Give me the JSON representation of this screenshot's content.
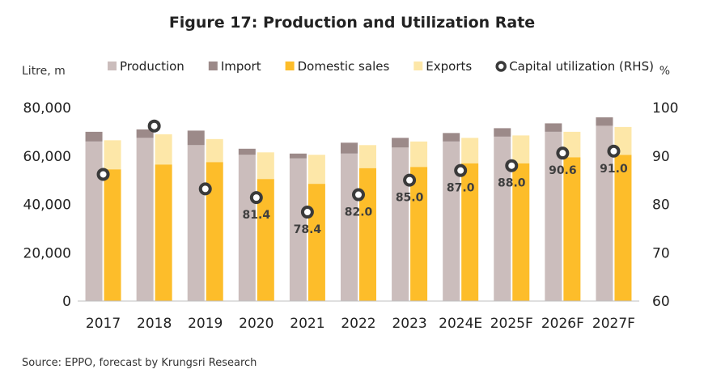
{
  "chart_data": {
    "type": "bar",
    "title": "Figure 17: Production and Utilization Rate",
    "left_unit": "Litre, m",
    "right_unit": "%",
    "source": "Source: EPPO, forecast by Krungsri Research",
    "categories": [
      "2017",
      "2018",
      "2019",
      "2020",
      "2021",
      "2022",
      "2023",
      "2024E",
      "2025F",
      "2026F",
      "2027F"
    ],
    "ylim_left": [
      0,
      80000
    ],
    "yticks_left": [
      "0",
      "20,000",
      "40,000",
      "60,000",
      "80,000"
    ],
    "ylim_right": [
      60,
      100
    ],
    "yticks_right": [
      "60",
      "70",
      "80",
      "90",
      "100"
    ],
    "stacks": [
      {
        "name": "Production",
        "color": "#cbbdbc",
        "stack": "supply",
        "values": [
          66000,
          67500,
          64500,
          60500,
          59000,
          61000,
          63500,
          66000,
          68000,
          70000,
          72500
        ]
      },
      {
        "name": "Import",
        "color": "#9c8a89",
        "stack": "supply",
        "values": [
          4000,
          3500,
          6000,
          2500,
          2000,
          4500,
          4000,
          3500,
          3500,
          3500,
          3500
        ]
      },
      {
        "name": "Domestic sales",
        "color": "#fdbd2a",
        "stack": "demand",
        "values": [
          54500,
          56500,
          57500,
          50500,
          48500,
          55000,
          55500,
          57000,
          57000,
          59500,
          60500
        ]
      },
      {
        "name": "Exports",
        "color": "#fde7a8",
        "stack": "demand",
        "values": [
          12000,
          12500,
          9500,
          11000,
          12000,
          9500,
          10500,
          10500,
          11500,
          10500,
          11500
        ]
      }
    ],
    "line": {
      "name": "Capital utilization (RHS)",
      "axis": "right",
      "values": [
        86.2,
        96.2,
        83.2,
        81.4,
        78.4,
        82.0,
        85.0,
        87.0,
        88.0,
        90.6,
        91.0
      ],
      "labels": [
        "",
        "",
        "",
        "81.4",
        "78.4",
        "82.0",
        "85.0",
        "87.0",
        "88.0",
        "90.6",
        "91.0"
      ]
    },
    "grid": false,
    "legend_position": "top"
  }
}
